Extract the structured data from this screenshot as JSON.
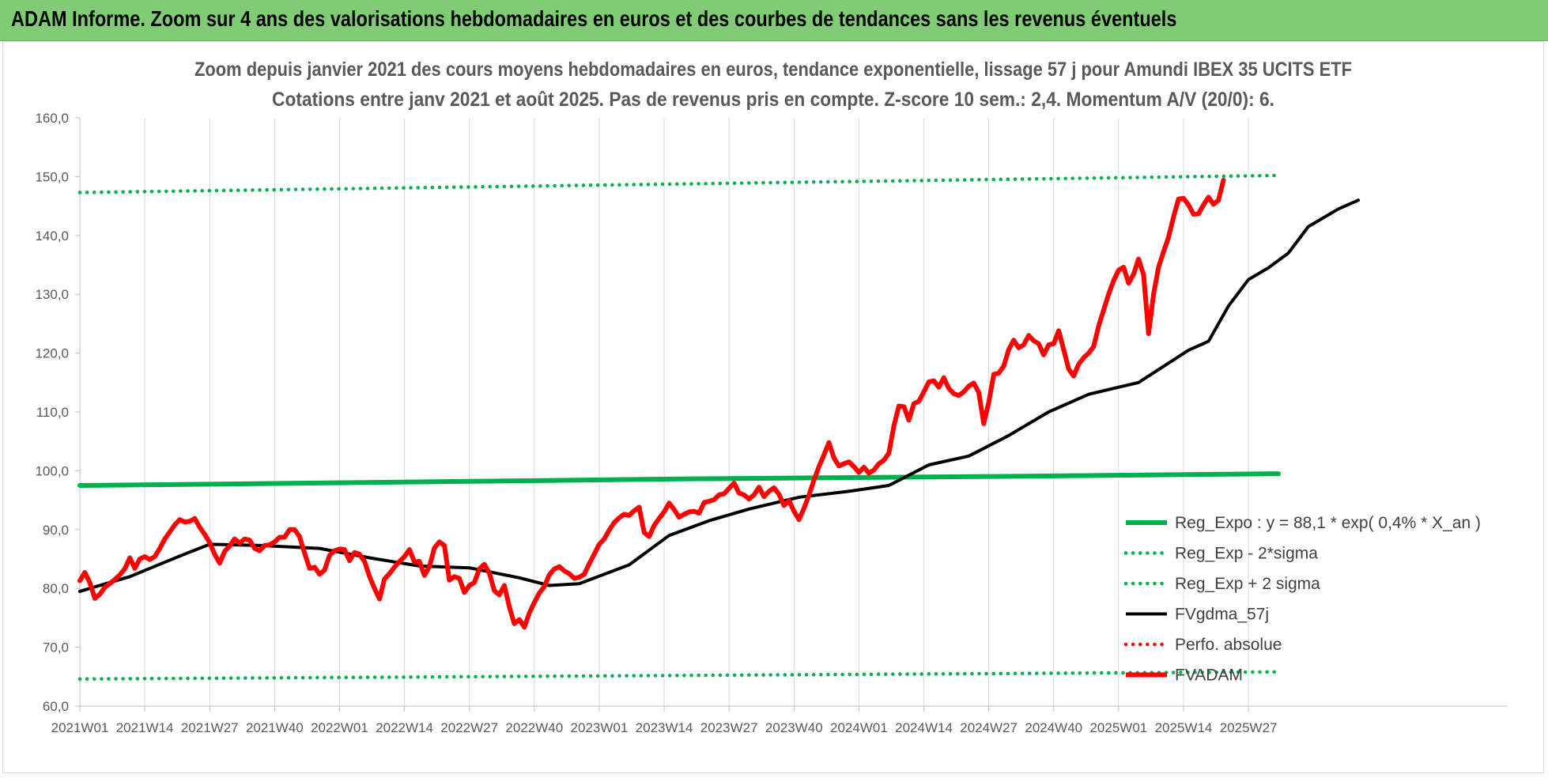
{
  "header": {
    "title": "ADAM Informe. Zoom sur 4 ans des valorisations hebdomadaires en euros et des courbes de tendances sans les revenus éventuels"
  },
  "chart_data": {
    "type": "line",
    "title_lines": [
      "Zoom depuis janvier 2021 des cours moyens hebdomadaires en euros, tendance exponentielle, lissage 57 j pour Amundi IBEX 35 UCITS ETF",
      "Cotations entre janv 2021 et août 2025. Pas de revenus pris en compte. Z-score 10 sem.: 2,4. Momentum A/V (20/0): 6."
    ],
    "xlabel": "",
    "ylabel": "",
    "ylim": [
      60,
      160
    ],
    "y_ticks": [
      "60,0",
      "70,0",
      "80,0",
      "90,0",
      "100,0",
      "110,0",
      "120,0",
      "130,0",
      "140,0",
      "150,0",
      "160,0"
    ],
    "x_tick_labels": [
      "2021W01",
      "2021W14",
      "2021W27",
      "2021W40",
      "2022W01",
      "2022W14",
      "2022W27",
      "2022W40",
      "2023W01",
      "2023W14",
      "2023W27",
      "2023W40",
      "2024W01",
      "2024W14",
      "2024W27",
      "2024W40",
      "2025W01",
      "2025W14",
      "2025W27"
    ],
    "x_week_range": [
      0,
      240
    ],
    "grid": "vertical gridlines at each x label",
    "legend_position": "bottom-right",
    "series": [
      {
        "name": "Reg_Expo : y = 88,1 * exp( 0,4% *  X_an )",
        "color": "#00b050",
        "style": "solid",
        "points": [
          [
            0,
            97.5
          ],
          [
            12,
            97.6
          ],
          [
            78,
            98.2
          ],
          [
            120,
            98.6
          ],
          [
            180,
            99.0
          ],
          [
            240,
            99.5
          ]
        ]
      },
      {
        "name": "Reg_Exp - 2*sigma",
        "color": "#00b050",
        "style": "dotted",
        "points": [
          [
            0,
            64.6
          ],
          [
            240,
            65.8
          ]
        ]
      },
      {
        "name": "Reg_Exp + 2 sigma",
        "color": "#00b050",
        "style": "dotted",
        "points": [
          [
            0,
            147.3
          ],
          [
            240,
            150.2
          ]
        ]
      },
      {
        "name": "FVgdma_57j",
        "color": "#000000",
        "style": "solid",
        "points": [
          [
            0,
            79.5
          ],
          [
            10,
            82.0
          ],
          [
            20,
            85.5
          ],
          [
            26,
            87.5
          ],
          [
            36,
            87.3
          ],
          [
            48,
            86.8
          ],
          [
            58,
            85.2
          ],
          [
            68,
            83.8
          ],
          [
            78,
            83.5
          ],
          [
            88,
            81.8
          ],
          [
            94,
            80.5
          ],
          [
            100,
            80.8
          ],
          [
            110,
            84.0
          ],
          [
            118,
            89.0
          ],
          [
            126,
            91.5
          ],
          [
            134,
            93.5
          ],
          [
            144,
            95.5
          ],
          [
            154,
            96.5
          ],
          [
            162,
            97.5
          ],
          [
            170,
            101.0
          ],
          [
            178,
            102.5
          ],
          [
            186,
            106.0
          ],
          [
            194,
            110.0
          ],
          [
            202,
            113.0
          ],
          [
            212,
            115.0
          ],
          [
            222,
            120.5
          ],
          [
            226,
            122.0
          ],
          [
            230,
            128.0
          ],
          [
            234,
            132.5
          ],
          [
            238,
            134.5
          ],
          [
            242,
            137.0
          ],
          [
            246,
            141.5
          ],
          [
            252,
            144.5
          ],
          [
            256,
            146.0
          ]
        ]
      },
      {
        "name": "Perfo. absolue",
        "color": "#ff0000",
        "style": "dotted",
        "points": []
      },
      {
        "name": "FVADAM",
        "color": "#ff0000",
        "style": "solid",
        "points": [
          [
            0,
            81.3
          ],
          [
            1,
            82.7
          ],
          [
            2,
            81.0
          ],
          [
            3,
            78.3
          ],
          [
            4,
            79.0
          ],
          [
            5,
            80.2
          ],
          [
            6,
            80.8
          ],
          [
            7,
            81.5
          ],
          [
            8,
            82.3
          ],
          [
            9,
            83.3
          ],
          [
            10,
            85.2
          ],
          [
            11,
            83.4
          ],
          [
            12,
            85.0
          ],
          [
            13,
            85.4
          ],
          [
            14,
            84.9
          ],
          [
            15,
            85.4
          ],
          [
            16,
            86.8
          ],
          [
            17,
            88.4
          ],
          [
            18,
            89.6
          ],
          [
            19,
            90.8
          ],
          [
            20,
            91.7
          ],
          [
            21,
            91.3
          ],
          [
            22,
            91.4
          ],
          [
            23,
            91.9
          ],
          [
            24,
            90.4
          ],
          [
            25,
            89.2
          ],
          [
            26,
            87.8
          ],
          [
            27,
            85.8
          ],
          [
            28,
            84.3
          ],
          [
            29,
            86.3
          ],
          [
            30,
            87.2
          ],
          [
            31,
            88.4
          ],
          [
            32,
            87.7
          ],
          [
            33,
            88.4
          ],
          [
            34,
            88.2
          ],
          [
            35,
            86.8
          ],
          [
            36,
            86.4
          ],
          [
            37,
            87.3
          ],
          [
            38,
            87.4
          ],
          [
            39,
            87.9
          ],
          [
            40,
            88.7
          ],
          [
            41,
            88.7
          ],
          [
            42,
            90.0
          ],
          [
            43,
            90.0
          ],
          [
            44,
            88.8
          ],
          [
            45,
            86.0
          ],
          [
            46,
            83.4
          ],
          [
            47,
            83.6
          ],
          [
            48,
            82.4
          ],
          [
            49,
            83.1
          ],
          [
            50,
            85.6
          ],
          [
            51,
            86.4
          ],
          [
            52,
            86.7
          ],
          [
            53,
            86.6
          ],
          [
            54,
            84.7
          ],
          [
            55,
            86.1
          ],
          [
            56,
            85.8
          ],
          [
            57,
            84.6
          ],
          [
            58,
            82.0
          ],
          [
            59,
            80.0
          ],
          [
            60,
            78.2
          ],
          [
            61,
            81.6
          ],
          [
            62,
            82.5
          ],
          [
            63,
            83.6
          ],
          [
            64,
            84.6
          ],
          [
            65,
            85.4
          ],
          [
            66,
            86.6
          ],
          [
            67,
            84.5
          ],
          [
            68,
            84.6
          ],
          [
            69,
            82.2
          ],
          [
            70,
            83.7
          ],
          [
            71,
            86.9
          ],
          [
            72,
            87.9
          ],
          [
            73,
            87.3
          ],
          [
            74,
            81.4
          ],
          [
            75,
            82.0
          ],
          [
            76,
            81.7
          ],
          [
            77,
            79.3
          ],
          [
            78,
            80.5
          ],
          [
            79,
            81.0
          ],
          [
            80,
            83.3
          ],
          [
            81,
            84.1
          ],
          [
            82,
            82.6
          ],
          [
            83,
            79.6
          ],
          [
            84,
            78.9
          ],
          [
            85,
            80.5
          ],
          [
            86,
            76.9
          ],
          [
            87,
            74.0
          ],
          [
            88,
            74.7
          ],
          [
            89,
            73.4
          ],
          [
            90,
            75.8
          ],
          [
            91,
            77.6
          ],
          [
            92,
            79.2
          ],
          [
            93,
            80.3
          ],
          [
            94,
            82.3
          ],
          [
            95,
            83.3
          ],
          [
            96,
            83.7
          ],
          [
            97,
            83.0
          ],
          [
            98,
            82.5
          ],
          [
            99,
            81.7
          ],
          [
            100,
            81.9
          ],
          [
            101,
            82.4
          ],
          [
            102,
            84.2
          ],
          [
            103,
            85.8
          ],
          [
            104,
            87.5
          ],
          [
            105,
            88.4
          ],
          [
            106,
            89.9
          ],
          [
            107,
            91.2
          ],
          [
            108,
            92.0
          ],
          [
            109,
            92.6
          ],
          [
            110,
            92.4
          ],
          [
            111,
            93.2
          ],
          [
            112,
            93.8
          ],
          [
            113,
            89.5
          ],
          [
            114,
            88.8
          ],
          [
            115,
            90.7
          ],
          [
            116,
            91.9
          ],
          [
            117,
            93.0
          ],
          [
            118,
            94.5
          ],
          [
            119,
            93.4
          ],
          [
            120,
            92.1
          ],
          [
            121,
            92.6
          ],
          [
            122,
            93.0
          ],
          [
            123,
            93.1
          ],
          [
            124,
            92.8
          ],
          [
            125,
            94.6
          ],
          [
            126,
            94.8
          ],
          [
            127,
            95.1
          ],
          [
            128,
            95.9
          ],
          [
            129,
            96.1
          ],
          [
            130,
            97.0
          ],
          [
            131,
            97.9
          ],
          [
            132,
            96.2
          ],
          [
            133,
            95.9
          ],
          [
            134,
            95.2
          ],
          [
            135,
            95.9
          ],
          [
            136,
            97.2
          ],
          [
            137,
            95.6
          ],
          [
            138,
            96.5
          ],
          [
            139,
            97.1
          ],
          [
            140,
            96.0
          ],
          [
            141,
            94.1
          ],
          [
            142,
            94.9
          ],
          [
            143,
            93.1
          ],
          [
            144,
            91.7
          ],
          [
            145,
            93.6
          ],
          [
            146,
            95.8
          ],
          [
            147,
            98.4
          ],
          [
            148,
            100.7
          ],
          [
            149,
            102.7
          ],
          [
            150,
            104.8
          ],
          [
            151,
            102.2
          ],
          [
            152,
            100.8
          ],
          [
            153,
            101.2
          ],
          [
            154,
            101.5
          ],
          [
            155,
            100.7
          ],
          [
            156,
            99.7
          ],
          [
            157,
            100.6
          ],
          [
            158,
            99.6
          ],
          [
            159,
            100.1
          ],
          [
            160,
            101.2
          ],
          [
            161,
            101.8
          ],
          [
            162,
            103.0
          ],
          [
            163,
            107.6
          ],
          [
            164,
            111.0
          ],
          [
            165,
            110.9
          ],
          [
            166,
            108.6
          ],
          [
            167,
            111.4
          ],
          [
            168,
            111.8
          ],
          [
            169,
            113.4
          ],
          [
            170,
            115.1
          ],
          [
            171,
            115.3
          ],
          [
            172,
            114.2
          ],
          [
            173,
            115.8
          ],
          [
            174,
            114.0
          ],
          [
            175,
            113.1
          ],
          [
            176,
            112.8
          ],
          [
            177,
            113.4
          ],
          [
            178,
            114.4
          ],
          [
            179,
            114.9
          ],
          [
            180,
            113.3
          ],
          [
            181,
            108.0
          ],
          [
            182,
            111.6
          ],
          [
            183,
            116.4
          ],
          [
            184,
            116.6
          ],
          [
            185,
            117.8
          ],
          [
            186,
            120.6
          ],
          [
            187,
            122.2
          ],
          [
            188,
            120.9
          ],
          [
            189,
            121.4
          ],
          [
            190,
            123.0
          ],
          [
            191,
            122.1
          ],
          [
            192,
            121.6
          ],
          [
            193,
            119.7
          ],
          [
            194,
            121.4
          ],
          [
            195,
            121.6
          ],
          [
            196,
            123.8
          ],
          [
            197,
            120.6
          ],
          [
            198,
            117.3
          ],
          [
            199,
            116.1
          ],
          [
            200,
            118.1
          ],
          [
            201,
            119.2
          ],
          [
            202,
            120.0
          ],
          [
            203,
            121.1
          ],
          [
            204,
            124.6
          ],
          [
            205,
            127.3
          ],
          [
            206,
            130.0
          ],
          [
            207,
            132.3
          ],
          [
            208,
            134.1
          ],
          [
            209,
            134.6
          ],
          [
            210,
            131.9
          ],
          [
            211,
            133.4
          ],
          [
            212,
            136.0
          ],
          [
            213,
            133.3
          ],
          [
            214,
            123.3
          ],
          [
            215,
            130.0
          ],
          [
            216,
            134.6
          ],
          [
            217,
            137.2
          ],
          [
            218,
            139.7
          ],
          [
            219,
            143.1
          ],
          [
            220,
            146.2
          ],
          [
            221,
            146.3
          ],
          [
            222,
            145.2
          ],
          [
            223,
            143.6
          ],
          [
            224,
            143.7
          ],
          [
            225,
            145.2
          ],
          [
            226,
            146.5
          ],
          [
            227,
            145.3
          ],
          [
            228,
            146.0
          ],
          [
            229,
            149.4
          ]
        ]
      }
    ]
  }
}
